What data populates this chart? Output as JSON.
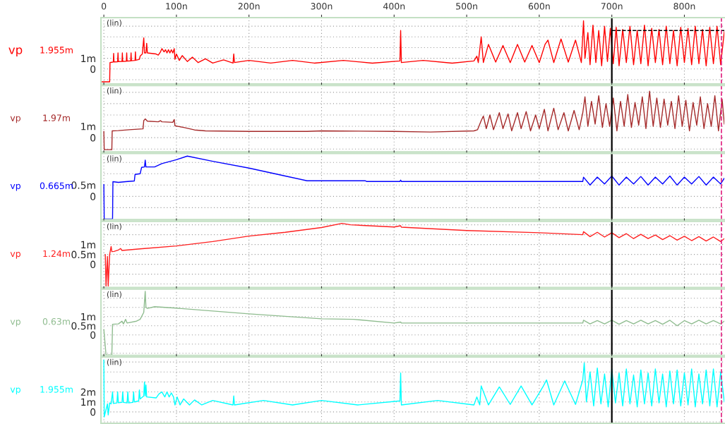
{
  "chart_data": [
    {
      "type": "line",
      "xlim": [
        -4,
        855
      ],
      "xticks": [
        0,
        {
          "value": 100,
          "label": "100n"
        },
        {
          "value": 200,
          "label": "200n"
        },
        {
          "value": 300,
          "label": "300n"
        },
        {
          "value": 400,
          "label": "400n"
        },
        {
          "value": 500,
          "label": "500n"
        },
        {
          "value": 600,
          "label": "600n"
        },
        {
          "value": 700,
          "label": "700n"
        },
        {
          "value": 800,
          "label": "800n"
        }
      ],
      "ylim": [
        -1.4,
        4.8
      ],
      "yticks": [
        {
          "value": -1,
          "label": null
        },
        0,
        {
          "value": 1,
          "label": "1m"
        },
        {
          "value": 2,
          "label": null
        },
        {
          "value": 3,
          "label": null
        },
        {
          "value": 4,
          "label": null
        }
      ],
      "grid": true,
      "annotations": [
        "(lin)",
        "1.955m"
      ],
      "ref_lines": [
        {
          "axis": "x",
          "value": 700,
          "color": "#000000",
          "line_style": "solid"
        },
        {
          "axis": "x",
          "value": 851,
          "color": "#e0207f",
          "line_style": "dashed"
        }
      ],
      "series": [
        {
          "name": "vp",
          "color": "#ff0000",
          "x": [
            -4,
            8,
            8.5,
            11,
            13,
            13.5,
            14,
            19,
            19.5,
            20,
            25,
            25.5,
            26,
            31,
            31.5,
            32,
            37,
            37.5,
            38,
            43,
            43.5,
            44,
            49,
            50,
            53,
            55,
            56,
            58,
            59,
            60,
            72,
            75,
            78,
            80,
            83,
            85,
            87,
            89,
            91,
            93,
            95,
            97,
            98,
            100,
            104,
            108,
            115,
            122,
            130,
            140,
            150,
            165,
            178,
            179,
            180,
            200,
            230,
            260,
            290,
            330,
            370,
            408,
            409,
            410,
            440,
            480,
            510,
            514,
            516,
            520,
            523,
            530,
            540,
            550,
            560,
            570,
            580,
            590,
            600,
            608,
            612,
            620,
            630,
            640,
            650,
            658,
            661,
            663,
            667,
            670,
            674,
            678,
            682,
            686,
            690,
            694,
            698,
            702,
            706,
            710,
            715,
            720,
            725,
            730,
            735,
            740,
            745,
            750,
            755,
            760,
            765,
            770,
            775,
            780,
            785,
            790,
            795,
            800,
            805,
            810,
            815,
            820,
            825,
            830,
            835,
            840,
            845,
            850,
            855
          ],
          "values": [
            -1.2,
            -1.2,
            0.6,
            0.63,
            0.65,
            1.45,
            0.66,
            0.68,
            1.5,
            0.69,
            0.7,
            1.5,
            0.71,
            0.73,
            1.5,
            0.74,
            0.76,
            1.5,
            0.77,
            0.8,
            1.6,
            0.82,
            0.9,
            1.2,
            1.4,
            2.9,
            1.5,
            1.5,
            2.4,
            1.5,
            1.4,
            1.3,
            1.6,
            1.9,
            1.6,
            1.8,
            1.5,
            1.8,
            1.5,
            1.8,
            1.5,
            1.9,
            0.9,
            1.4,
            0.8,
            1.25,
            0.7,
            1.1,
            0.6,
            0.95,
            0.55,
            0.85,
            0.55,
            1.4,
            0.6,
            0.8,
            0.55,
            0.8,
            0.55,
            0.8,
            0.55,
            0.75,
            3.6,
            0.6,
            0.8,
            0.55,
            0.75,
            1.2,
            0.6,
            3.0,
            0.6,
            2.3,
            0.65,
            2.2,
            0.6,
            2.3,
            0.65,
            2.2,
            0.6,
            2.3,
            2.7,
            0.6,
            2.8,
            0.65,
            2.7,
            0.6,
            4.5,
            1.0,
            3.4,
            0.4,
            4.1,
            0.6,
            3.6,
            0.3,
            4.0,
            0.7,
            3.8,
            0.5,
            3.9,
            0.3,
            3.7,
            0.6,
            4.0,
            0.4,
            3.6,
            0.5,
            4.1,
            0.3,
            3.8,
            0.6,
            3.7,
            0.4,
            4.0,
            0.5,
            3.6,
            0.3,
            3.9,
            0.6,
            3.8,
            0.4,
            4.0,
            0.5,
            3.7,
            0.3,
            3.9,
            0.5,
            4.0,
            0.4,
            3.5
          ]
        },
        {
          "color": "#000000",
          "line_style": "dashed",
          "x": [
            700,
            855
          ],
          "values": [
            3.6,
            3.6
          ]
        }
      ]
    },
    {
      "type": "line",
      "xlim": [
        -4,
        855
      ],
      "xticks": [
        0,
        100,
        200,
        300,
        400,
        500,
        600,
        700,
        800
      ],
      "tick_labels": "y",
      "ylim": [
        -1.25,
        4.6
      ],
      "yticks": [
        {
          "value": -1,
          "label": null
        },
        0,
        {
          "value": 1,
          "label": "1m"
        },
        {
          "value": 2,
          "label": null
        },
        {
          "value": 3,
          "label": null
        },
        {
          "value": 4,
          "label": null
        }
      ],
      "grid": true,
      "annotations": [
        "(lin)",
        "1.97m"
      ],
      "ref_lines": [
        {
          "axis": "x",
          "value": 700,
          "color": "#000000",
          "line_style": "solid"
        },
        {
          "axis": "x",
          "value": 851,
          "color": "#e0207f",
          "line_style": "dashed"
        }
      ],
      "series": [
        {
          "name": "vp",
          "color": "#a52a2a",
          "x": [
            0,
            0.5,
            11,
            11.5,
            20,
            35,
            54,
            55,
            57,
            60,
            75,
            78,
            80,
            95,
            97,
            98,
            110,
            125,
            140,
            200,
            280,
            300,
            400,
            450,
            510,
            515,
            520,
            523,
            527,
            532,
            537,
            545,
            550,
            557,
            562,
            570,
            575,
            582,
            588,
            595,
            600,
            607,
            612,
            620,
            626,
            634,
            640,
            648,
            655,
            660,
            663,
            667,
            672,
            677,
            682,
            687,
            692,
            697,
            702,
            707,
            712,
            717,
            722,
            727,
            732,
            737,
            742,
            747,
            752,
            757,
            762,
            767,
            772,
            777,
            782,
            787,
            792,
            797,
            802,
            807,
            812,
            817,
            822,
            827,
            832,
            837,
            842,
            847,
            852,
            855
          ],
          "values": [
            0.56,
            -1.06,
            -1.06,
            0.6,
            0.62,
            0.7,
            0.78,
            1.5,
            1.65,
            1.45,
            1.4,
            1.5,
            1.4,
            1.35,
            1.6,
            1.05,
            0.9,
            0.68,
            0.6,
            0.55,
            0.55,
            0.6,
            0.55,
            0.5,
            0.6,
            0.7,
            1.5,
            1.9,
            0.8,
            2.0,
            0.7,
            2.2,
            0.8,
            2.1,
            0.6,
            2.2,
            0.8,
            2.3,
            0.6,
            2.0,
            0.8,
            2.5,
            0.6,
            2.6,
            0.7,
            2.2,
            0.6,
            2.4,
            0.7,
            2.2,
            3.6,
            1.0,
            3.2,
            1.2,
            3.7,
            0.9,
            3.0,
            1.0,
            3.5,
            0.6,
            3.2,
            1.0,
            3.8,
            0.9,
            3.1,
            1.1,
            3.6,
            0.8,
            4.1,
            1.0,
            3.5,
            0.9,
            3.4,
            1.1,
            3.2,
            0.8,
            3.7,
            1.0,
            3.3,
            0.6,
            3.1,
            1.1,
            3.6,
            0.8,
            3.0,
            1.0,
            3.7,
            0.6,
            3.4,
            1.2
          ]
        }
      ]
    },
    {
      "type": "line",
      "xlim": [
        -4,
        855
      ],
      "xticks": [
        0,
        100,
        200,
        300,
        400,
        500,
        600,
        700,
        800
      ],
      "tick_labels": "y",
      "ylim": [
        -1.03,
        1.9
      ],
      "yticks": [
        {
          "value": -0.5,
          "label": null
        },
        0,
        {
          "value": 0.5,
          "label": "0.5m"
        },
        {
          "value": 1,
          "label": null
        },
        {
          "value": 1.5,
          "label": null
        }
      ],
      "grid": true,
      "annotations": [
        "(lin)",
        "0.665m"
      ],
      "ref_lines": [
        {
          "axis": "x",
          "value": 700,
          "color": "#000000",
          "line_style": "solid"
        },
        {
          "axis": "x",
          "value": 851,
          "color": "#e0207f",
          "line_style": "dashed"
        }
      ],
      "series": [
        {
          "name": "vp",
          "color": "#0000ff",
          "x": [
            0,
            0.5,
            12,
            12.5,
            20,
            30,
            42,
            43,
            50,
            52,
            56,
            57,
            58,
            70,
            80,
            100,
            115,
            150,
            200,
            250,
            280,
            360,
            362,
            408,
            409,
            410,
            660,
            661,
            670,
            680,
            690,
            700,
            710,
            720,
            730,
            740,
            750,
            760,
            770,
            780,
            790,
            800,
            810,
            820,
            830,
            840,
            850,
            855
          ],
          "values": [
            0.53,
            -1.0,
            -1.0,
            0.65,
            0.62,
            0.65,
            0.68,
            0.97,
            1.0,
            1.28,
            1.3,
            1.6,
            1.3,
            1.3,
            1.45,
            1.62,
            1.78,
            1.55,
            1.25,
            0.9,
            0.69,
            0.69,
            0.66,
            0.66,
            0.72,
            0.66,
            0.66,
            0.85,
            0.5,
            0.85,
            0.55,
            0.9,
            0.5,
            0.85,
            0.55,
            0.88,
            0.5,
            0.85,
            0.55,
            0.9,
            0.5,
            0.85,
            0.55,
            0.88,
            0.5,
            0.85,
            0.55,
            0.8
          ]
        }
      ]
    },
    {
      "type": "line",
      "xlim": [
        -4,
        855
      ],
      "xticks": [
        0,
        100,
        200,
        300,
        400,
        500,
        600,
        700,
        800
      ],
      "tick_labels": "y",
      "ylim": [
        -1.18,
        2.18
      ],
      "yticks": [
        {
          "value": -1,
          "label": null
        },
        {
          "value": -0.5,
          "label": null
        },
        0,
        {
          "value": 0.5,
          "label": "0.5m"
        },
        {
          "value": 1,
          "label": "1m"
        },
        {
          "value": 1.5,
          "label": null
        },
        {
          "value": 2,
          "label": null
        }
      ],
      "grid": true,
      "annotations": [
        "(lin)",
        "1.24m"
      ],
      "ref_lines": [
        {
          "axis": "x",
          "value": 700,
          "color": "#000000",
          "line_style": "solid"
        },
        {
          "axis": "x",
          "value": 851,
          "color": "#e0207f",
          "line_style": "dashed"
        }
      ],
      "series": [
        {
          "name": "vp",
          "color": "#ff2020",
          "x": [
            2,
            3,
            5,
            6,
            8,
            10,
            11,
            14,
            20,
            23,
            25,
            50,
            100,
            150,
            200,
            250,
            300,
            328,
            340,
            400,
            409,
            410,
            500,
            600,
            660,
            661,
            670,
            680,
            690,
            700,
            710,
            720,
            730,
            740,
            750,
            760,
            770,
            780,
            790,
            800,
            810,
            820,
            830,
            840,
            850,
            855
          ],
          "values": [
            0.5,
            -1.1,
            0.4,
            -1.1,
            0.5,
            0.9,
            0.64,
            0.65,
            0.72,
            0.8,
            0.7,
            0.78,
            0.93,
            1.15,
            1.43,
            1.62,
            1.86,
            2.07,
            2.0,
            1.89,
            1.95,
            1.88,
            1.71,
            1.6,
            1.5,
            1.65,
            1.4,
            1.62,
            1.38,
            1.6,
            1.35,
            1.55,
            1.3,
            1.52,
            1.3,
            1.48,
            1.25,
            1.45,
            1.22,
            1.42,
            1.2,
            1.4,
            1.18,
            1.38,
            1.15,
            1.3
          ]
        }
      ]
    },
    {
      "type": "line",
      "xlim": [
        -4,
        855
      ],
      "xticks": [
        0,
        100,
        200,
        300,
        400,
        500,
        600,
        700,
        800
      ],
      "tick_labels": "y",
      "ylim": [
        -1.12,
        2.5
      ],
      "yticks": [
        {
          "value": -1,
          "label": null
        },
        {
          "value": -0.5,
          "label": null
        },
        0,
        {
          "value": 0.5,
          "label": "0.5m"
        },
        {
          "value": 1,
          "label": "1m"
        },
        {
          "value": 1.5,
          "label": null
        },
        {
          "value": 2,
          "label": null
        }
      ],
      "grid": true,
      "annotations": [
        "(lin)",
        "0.63m"
      ],
      "ref_lines": [
        {
          "axis": "x",
          "value": 700,
          "color": "#000000",
          "line_style": "solid"
        },
        {
          "axis": "x",
          "value": 851,
          "color": "#e0207f",
          "line_style": "dashed"
        }
      ],
      "series": [
        {
          "name": "vp",
          "color": "#8fbc8f",
          "x": [
            0,
            3,
            11,
            12,
            20,
            25,
            27,
            30,
            32,
            45,
            50,
            55,
            57,
            58,
            60,
            70,
            100,
            200,
            300,
            344,
            400,
            409,
            410,
            660,
            661,
            670,
            680,
            690,
            700,
            710,
            720,
            730,
            740,
            750,
            760,
            770,
            780,
            790,
            800,
            810,
            820,
            830,
            840,
            850,
            855
          ],
          "values": [
            0.3,
            -1.1,
            -1.1,
            0.58,
            0.6,
            0.75,
            0.6,
            0.85,
            0.65,
            0.75,
            0.85,
            1.23,
            2.38,
            1.5,
            1.45,
            1.54,
            1.46,
            1.15,
            0.88,
            0.85,
            0.65,
            0.7,
            0.65,
            0.65,
            0.8,
            0.6,
            0.78,
            0.6,
            0.8,
            0.58,
            0.78,
            0.6,
            0.8,
            0.6,
            0.78,
            0.58,
            0.8,
            0.5,
            0.78,
            0.6,
            0.8,
            0.6,
            0.78,
            0.6,
            0.75
          ]
        }
      ]
    },
    {
      "type": "line",
      "xlim": [
        -4,
        855
      ],
      "xticks": [
        0,
        100,
        200,
        300,
        400,
        500,
        600,
        700,
        800
      ],
      "tick_labels": "y",
      "ylim": [
        -1.14,
        5.5
      ],
      "yticks": [
        {
          "value": -1,
          "label": null
        },
        0,
        {
          "value": 1,
          "label": "1m"
        },
        {
          "value": 2,
          "label": "2m"
        },
        {
          "value": 3,
          "label": null
        },
        {
          "value": 4,
          "label": null
        },
        {
          "value": 5,
          "label": null
        }
      ],
      "grid": true,
      "annotations": [
        "(lin)",
        "1.955m"
      ],
      "ref_lines": [
        {
          "axis": "x",
          "value": 700,
          "color": "#000000",
          "line_style": "solid"
        },
        {
          "axis": "x",
          "value": 851,
          "color": "#e0207f",
          "line_style": "dashed"
        }
      ],
      "series": [
        {
          "name": "vp",
          "color": "#00ffff",
          "x": [
            0,
            0.5,
            5,
            6,
            8,
            10,
            12,
            13,
            18,
            19,
            20,
            25,
            26,
            27,
            32,
            33,
            34,
            40,
            41,
            42,
            48,
            49,
            50,
            55,
            56,
            57,
            58,
            59,
            72,
            76,
            80,
            84,
            87,
            90,
            93,
            96,
            98,
            101,
            105,
            110,
            118,
            125,
            135,
            150,
            178,
            179,
            180,
            220,
            260,
            300,
            350,
            408,
            409,
            410,
            460,
            510,
            514,
            518,
            520,
            530,
            545,
            560,
            575,
            590,
            605,
            610,
            620,
            635,
            650,
            660,
            662,
            665,
            670,
            675,
            680,
            685,
            690,
            695,
            700,
            705,
            710,
            715,
            720,
            725,
            730,
            735,
            740,
            745,
            750,
            755,
            760,
            765,
            770,
            775,
            780,
            785,
            790,
            795,
            800,
            805,
            810,
            815,
            820,
            825,
            830,
            835,
            840,
            845,
            850,
            855
          ],
          "values": [
            5.2,
            -0.5,
            0.8,
            -0.3,
            0.9,
            0.8,
            2.0,
            0.85,
            0.9,
            2.0,
            0.92,
            0.95,
            2.0,
            0.95,
            0.9,
            2.0,
            0.9,
            0.95,
            2.0,
            1.0,
            1.1,
            2.2,
            1.3,
            1.6,
            3.0,
            1.6,
            2.7,
            1.5,
            1.4,
            1.8,
            2.0,
            1.5,
            2.0,
            1.5,
            1.9,
            1.5,
            0.7,
            1.5,
            0.7,
            1.3,
            0.7,
            1.2,
            0.7,
            1.15,
            0.7,
            1.6,
            0.7,
            1.15,
            0.7,
            1.15,
            0.7,
            1.1,
            3.9,
            0.7,
            1.15,
            0.7,
            1.5,
            0.7,
            2.6,
            0.7,
            2.5,
            0.75,
            2.6,
            0.7,
            2.5,
            3.2,
            0.7,
            3.1,
            0.75,
            3.2,
            4.9,
            1.0,
            4.0,
            0.6,
            4.4,
            0.8,
            3.8,
            0.5,
            4.3,
            0.9,
            3.9,
            0.6,
            4.3,
            0.8,
            3.7,
            0.5,
            4.2,
            0.8,
            3.9,
            0.6,
            4.3,
            0.9,
            3.8,
            0.5,
            4.1,
            0.8,
            4.2,
            0.6,
            3.9,
            0.7,
            4.3,
            0.5,
            3.8,
            0.8,
            4.2,
            0.6,
            4.3,
            0.5,
            4.0,
            1.0
          ]
        }
      ]
    }
  ]
}
